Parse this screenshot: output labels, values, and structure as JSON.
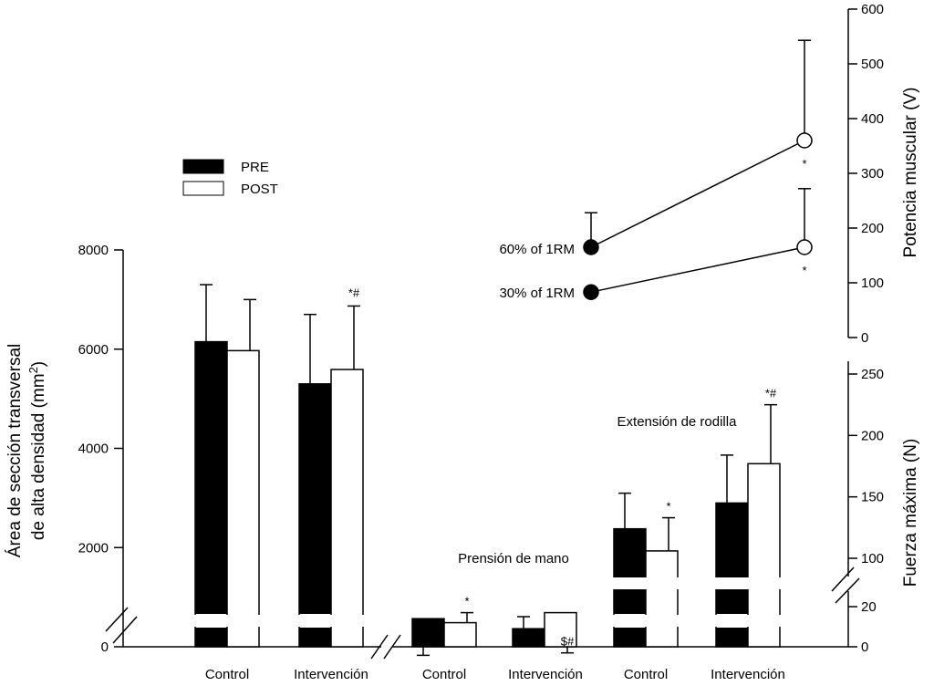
{
  "colors": {
    "pre_fill": "#000000",
    "post_fill": "#ffffff",
    "stroke": "#000000",
    "background": "#ffffff"
  },
  "chart_data": [
    {
      "type": "bar",
      "panel": "area",
      "ylabel": "Área de sección transversal",
      "ylabel_line2": "de alta densidad (mm",
      "ylabel_sup": "2",
      "ylabel_close": ")",
      "ylim": [
        0,
        8000
      ],
      "yticks": [
        0,
        2000,
        4000,
        6000,
        8000
      ],
      "axis_break": true,
      "categories": [
        "Control",
        "Intervención"
      ],
      "series": [
        {
          "name": "PRE",
          "values": [
            6150,
            5300
          ],
          "errors": [
            1150,
            1400
          ]
        },
        {
          "name": "POST",
          "values": [
            5970,
            5590
          ],
          "errors": [
            1030,
            1280
          ]
        }
      ],
      "annotations": [
        {
          "category": "Intervención",
          "series": "POST",
          "text": "*#"
        }
      ],
      "legend": [
        "PRE",
        "POST"
      ],
      "legend_position": "upper-left"
    },
    {
      "type": "bar",
      "panel": "strength",
      "ylabel": "Fuerza máxima (N)",
      "yticks_lower": [
        0,
        20
      ],
      "yticks_upper": [
        100,
        150,
        200,
        250
      ],
      "axis_break": true,
      "groups": [
        {
          "label": "Prensión de mano",
          "categories": [
            "Control",
            "Intervención"
          ],
          "series": [
            {
              "name": "PRE",
              "values": [
                14,
                9
              ],
              "errors": [
                7,
                6
              ]
            },
            {
              "name": "POST",
              "values": [
                12,
                17
              ],
              "errors": [
                5,
                6
              ]
            }
          ],
          "annotations": [
            {
              "category": "Control",
              "series": "POST",
              "text": "*"
            },
            {
              "category": "Intervención",
              "series": "POST",
              "text": "$#"
            }
          ]
        },
        {
          "label": "Extensión de rodilla",
          "categories": [
            "Control",
            "Intervención"
          ],
          "series": [
            {
              "name": "PRE",
              "values": [
                124,
                145
              ],
              "errors": [
                29,
                39
              ]
            },
            {
              "name": "POST",
              "values": [
                106,
                177
              ],
              "errors": [
                27,
                48
              ]
            }
          ],
          "annotations": [
            {
              "category": "Control",
              "series": "POST",
              "text": "*"
            },
            {
              "category": "Intervención",
              "series": "POST",
              "text": "*#"
            }
          ]
        }
      ]
    },
    {
      "type": "line",
      "panel": "power",
      "ylabel": "Potencia muscular (V)",
      "ylim": [
        0,
        600
      ],
      "yticks": [
        0,
        100,
        200,
        300,
        400,
        500,
        600
      ],
      "x": [
        "PRE",
        "POST"
      ],
      "series": [
        {
          "name": "60% of 1RM",
          "values": [
            165,
            360
          ],
          "errors": [
            63,
            183
          ],
          "annotation_post": "*"
        },
        {
          "name": "30% of 1RM",
          "values": [
            83,
            165
          ],
          "errors": [
            0,
            107
          ],
          "annotation_post": "*"
        }
      ]
    }
  ]
}
